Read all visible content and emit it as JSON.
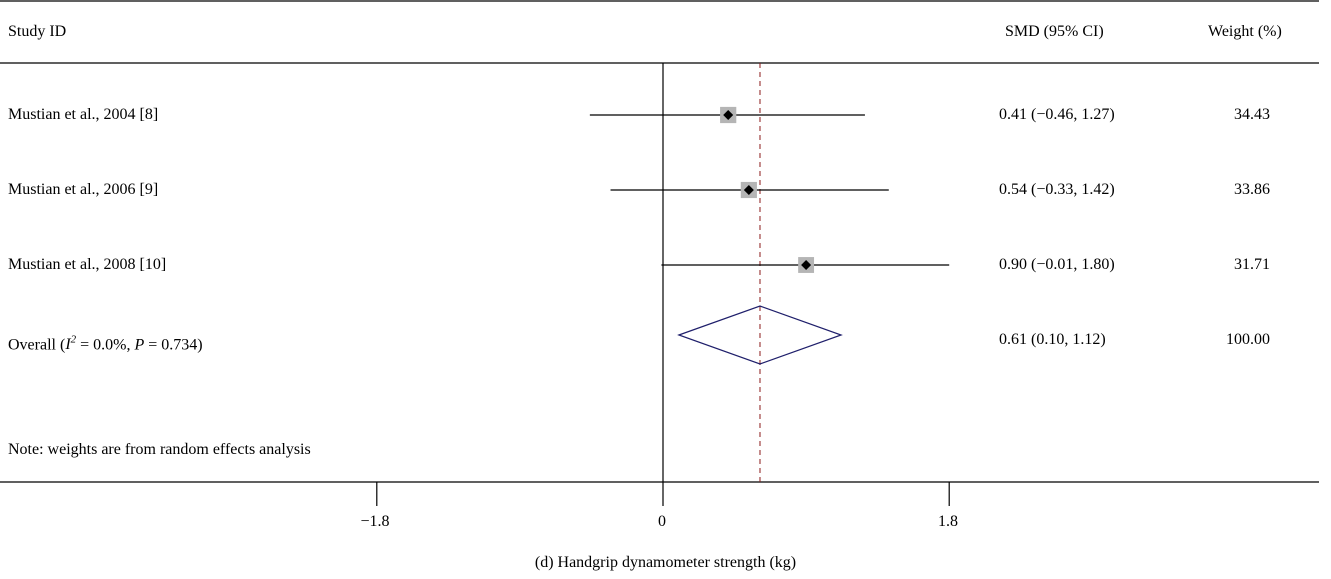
{
  "header": {
    "study_label": "Study ID",
    "effect_label": "SMD (95% CI)",
    "weight_label": "Weight (%)"
  },
  "note": "Note: weights are from random effects analysis",
  "caption": "(d)  Handgrip dynamometer strength (kg)",
  "colors": {
    "line": "#000000",
    "box": "#b5b5b5",
    "overall_diamond": "#1f1f6b",
    "pooled_line": "#8b1a1a"
  },
  "chart_data": {
    "type": "forest",
    "xlabel": "",
    "xlim": [
      -2.7,
      4.3
    ],
    "x_ticks": [
      {
        "value": -1.8,
        "label": "−1.8"
      },
      {
        "value": 0,
        "label": "0"
      },
      {
        "value": 1.8,
        "label": "1.8"
      }
    ],
    "null_line": 0,
    "pooled_estimate": 0.61,
    "studies": [
      {
        "label": "Mustian et al., 2004 [8]",
        "smd": 0.41,
        "lower": -0.46,
        "upper": 1.27,
        "ci_text": "0.41 (−0.46, 1.27)",
        "weight": 34.43,
        "weight_text": "34.43"
      },
      {
        "label": "Mustian et al., 2006 [9]",
        "smd": 0.54,
        "lower": -0.33,
        "upper": 1.42,
        "ci_text": "0.54 (−0.33, 1.42)",
        "weight": 33.86,
        "weight_text": "33.86"
      },
      {
        "label": "Mustian et al., 2008 [10]",
        "smd": 0.9,
        "lower": -0.01,
        "upper": 1.8,
        "ci_text": "0.90 (−0.01, 1.80)",
        "weight": 31.71,
        "weight_text": "31.71"
      }
    ],
    "overall": {
      "label_prefix": "Overall (",
      "label_i": "I",
      "label_sup": "2",
      "label_middle": " = 0.0%, ",
      "label_p": "P",
      "label_suffix": " = 0.734)",
      "smd": 0.61,
      "lower": 0.1,
      "upper": 1.12,
      "ci_text": "0.61 (0.10, 1.12)",
      "weight": 100.0,
      "weight_text": "100.00"
    }
  }
}
